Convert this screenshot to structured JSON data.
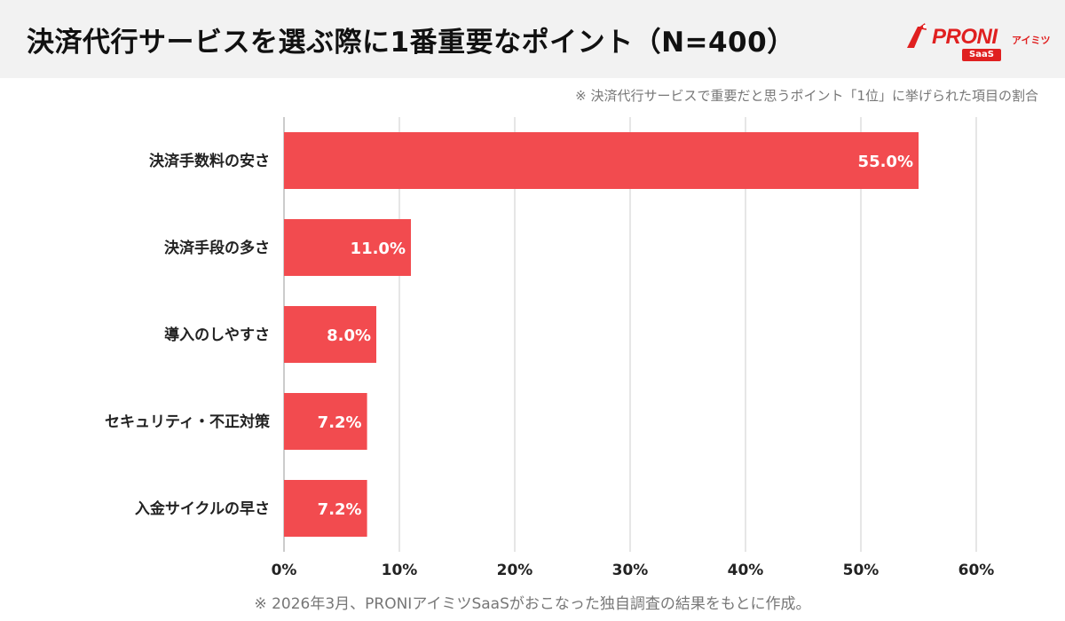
{
  "header": {
    "title": "決済代行サービスを選ぶ際に1番重要なポイント（N=400）",
    "logo_text": "PRONI",
    "logo_sub": "アイミツ",
    "logo_badge": "SaaS",
    "brand_color": "#e02020"
  },
  "note": "※ 決済代行サービスで重要だと思うポイント「1位」に挙げられた項目の割合",
  "footnote": "※ 2026年3月、PRONIアイミツSaaSがおこなった独自調査の結果をもとに作成。",
  "chart_data": {
    "type": "bar",
    "orientation": "horizontal",
    "categories": [
      "決済手数料の安さ",
      "決済手段の多さ",
      "導入のしやすさ",
      "セキュリティ・不正対策",
      "入金サイクルの早さ"
    ],
    "values": [
      55.0,
      11.0,
      8.0,
      7.2,
      7.2
    ],
    "value_labels": [
      "55.0%",
      "11.0%",
      "8.0%",
      "7.2%",
      "7.2%"
    ],
    "xlim": [
      0,
      60
    ],
    "ticks": [
      "0%",
      "10%",
      "20%",
      "30%",
      "40%",
      "50%",
      "60%"
    ],
    "bar_color": "#f24b4f",
    "grid": true
  }
}
